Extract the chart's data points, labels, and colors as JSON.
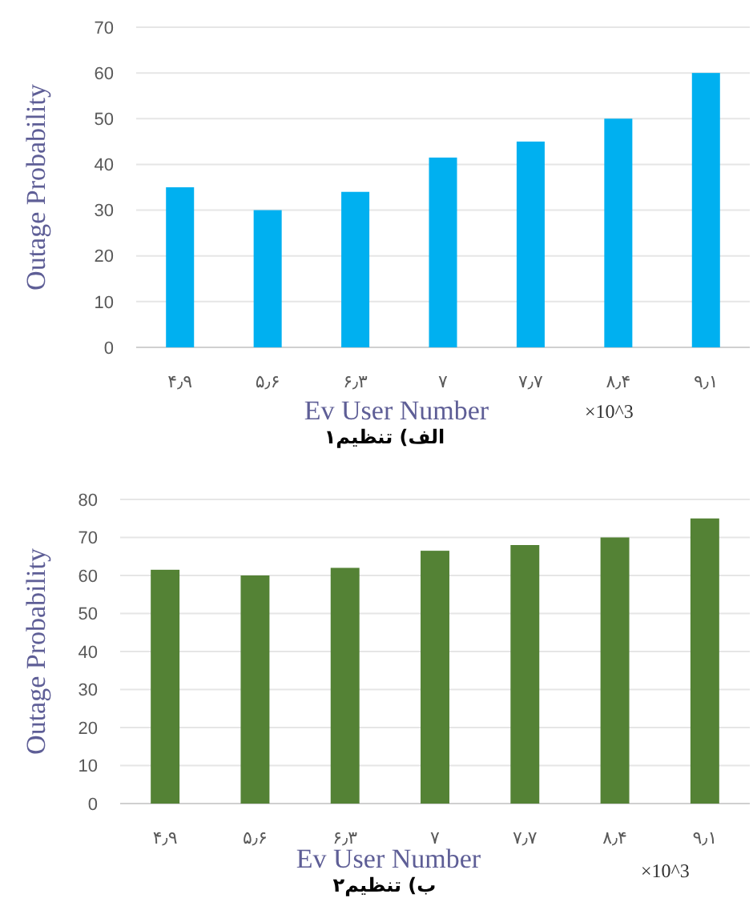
{
  "chart_data": [
    {
      "type": "bar",
      "title": "الف) تنظیم۱",
      "xlabel": "Ev User Number",
      "ylabel": "Outage Probability",
      "annotations": [
        "×10^3"
      ],
      "categories": [
        "۴٫۹",
        "۵٫۶",
        "۶٫۳",
        "۷",
        "۷٫۷",
        "۸٫۴",
        "۹٫۱"
      ],
      "values": [
        35,
        30,
        34,
        41.5,
        45,
        50,
        60
      ],
      "color": "#00b0f0",
      "ylim": [
        0,
        70
      ],
      "yticks": [
        0,
        10,
        20,
        30,
        40,
        50,
        60,
        70
      ],
      "grid": "y"
    },
    {
      "type": "bar",
      "title": "ب) تنظیم۲",
      "xlabel": "Ev User Number",
      "ylabel": "Outage Probability",
      "annotations": [
        "×10^3"
      ],
      "categories": [
        "۴٫۹",
        "۵٫۶",
        "۶٫۳",
        "۷",
        "۷٫۷",
        "۸٫۴",
        "۹٫۱"
      ],
      "values": [
        61.5,
        60,
        62,
        66.5,
        68,
        70,
        75
      ],
      "color": "#548235",
      "ylim": [
        0,
        80
      ],
      "yticks": [
        0,
        10,
        20,
        30,
        40,
        50,
        60,
        70,
        80
      ],
      "grid": "y"
    }
  ]
}
